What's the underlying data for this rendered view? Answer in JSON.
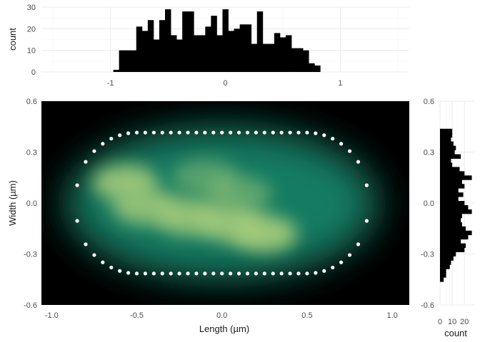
{
  "chart_data": [
    {
      "type": "bar",
      "role": "top-marginal-histogram",
      "xlabel": "",
      "ylabel": "count",
      "xlim": [
        -1.6,
        1.6
      ],
      "ylim": [
        0,
        30
      ],
      "x_ticks": [
        "-1",
        "0",
        "1"
      ],
      "y_ticks": [
        "0",
        "10",
        "20",
        "30"
      ],
      "bin_width": 0.05,
      "bins": [
        {
          "x": -0.95,
          "count": 1
        },
        {
          "x": -0.9,
          "count": 10
        },
        {
          "x": -0.85,
          "count": 10
        },
        {
          "x": -0.8,
          "count": 10
        },
        {
          "x": -0.75,
          "count": 21
        },
        {
          "x": -0.7,
          "count": 19
        },
        {
          "x": -0.65,
          "count": 24
        },
        {
          "x": -0.6,
          "count": 15
        },
        {
          "x": -0.55,
          "count": 24
        },
        {
          "x": -0.5,
          "count": 29
        },
        {
          "x": -0.45,
          "count": 17
        },
        {
          "x": -0.4,
          "count": 15
        },
        {
          "x": -0.35,
          "count": 28
        },
        {
          "x": -0.3,
          "count": 28
        },
        {
          "x": -0.25,
          "count": 17
        },
        {
          "x": -0.2,
          "count": 17
        },
        {
          "x": -0.15,
          "count": 21
        },
        {
          "x": -0.1,
          "count": 26
        },
        {
          "x": -0.05,
          "count": 17
        },
        {
          "x": 0.0,
          "count": 29
        },
        {
          "x": 0.05,
          "count": 19
        },
        {
          "x": 0.1,
          "count": 20
        },
        {
          "x": 0.15,
          "count": 22
        },
        {
          "x": 0.2,
          "count": 22
        },
        {
          "x": 0.25,
          "count": 13
        },
        {
          "x": 0.3,
          "count": 28
        },
        {
          "x": 0.35,
          "count": 13
        },
        {
          "x": 0.4,
          "count": 13
        },
        {
          "x": 0.45,
          "count": 18
        },
        {
          "x": 0.5,
          "count": 16
        },
        {
          "x": 0.55,
          "count": 17
        },
        {
          "x": 0.6,
          "count": 11
        },
        {
          "x": 0.65,
          "count": 11
        },
        {
          "x": 0.7,
          "count": 10
        },
        {
          "x": 0.75,
          "count": 4
        },
        {
          "x": 0.8,
          "count": 3
        }
      ]
    },
    {
      "type": "heatmap",
      "role": "main-density-with-outline",
      "xlabel": "Length (µm)",
      "ylabel": "Width (µm)",
      "xlim": [
        -1.06,
        1.1
      ],
      "ylim": [
        -0.6,
        0.6
      ],
      "x_ticks": [
        "-1.0",
        "-0.5",
        "0.0",
        "0.5",
        "1.0"
      ],
      "y_ticks": [
        "-0.6",
        "-0.3",
        "0.0",
        "0.3",
        "0.6"
      ],
      "colors": {
        "low": "#000000",
        "mid": "#14876b",
        "high": "#a9ce7c"
      },
      "density_hotspots": [
        {
          "x": -0.57,
          "y": 0.12,
          "intensity": 0.85
        },
        {
          "x": -0.45,
          "y": -0.02,
          "intensity": 0.8
        },
        {
          "x": -0.2,
          "y": -0.08,
          "intensity": 0.85
        },
        {
          "x": 0.05,
          "y": -0.12,
          "intensity": 0.85
        },
        {
          "x": 0.25,
          "y": -0.18,
          "intensity": 0.9
        },
        {
          "x": -0.1,
          "y": 0.15,
          "intensity": 0.45
        },
        {
          "x": 0.1,
          "y": 0.05,
          "intensity": 0.5
        }
      ],
      "outline_points": {
        "x": [
          -0.85,
          -0.8,
          -0.75,
          -0.7,
          -0.65,
          -0.6,
          -0.55,
          -0.5,
          -0.45,
          -0.4,
          -0.35,
          -0.3,
          -0.25,
          -0.2,
          -0.15,
          -0.1,
          -0.05,
          0.0,
          0.05,
          0.1,
          0.15,
          0.2,
          0.25,
          0.3,
          0.35,
          0.4,
          0.45,
          0.5,
          0.55,
          0.6,
          0.65,
          0.7,
          0.75,
          0.8,
          0.85
        ],
        "half_width": 0.415,
        "mid_half_width": 0.105
      }
    },
    {
      "type": "bar",
      "orientation": "horizontal",
      "role": "right-marginal-histogram",
      "xlabel": "count",
      "ylabel": "",
      "xlim": [
        0,
        28
      ],
      "ylim": [
        -0.6,
        0.6
      ],
      "x_ticks": [
        "0",
        "10",
        "20"
      ],
      "y_ticks": [
        "-0.6",
        "-0.3",
        "0.0",
        "0.3",
        "0.6"
      ],
      "bin_width": 0.025,
      "bins": [
        {
          "y": 0.425,
          "count": 10
        },
        {
          "y": 0.4,
          "count": 10
        },
        {
          "y": 0.375,
          "count": 9
        },
        {
          "y": 0.35,
          "count": 11
        },
        {
          "y": 0.325,
          "count": 13
        },
        {
          "y": 0.3,
          "count": 12
        },
        {
          "y": 0.275,
          "count": 17
        },
        {
          "y": 0.25,
          "count": 9
        },
        {
          "y": 0.225,
          "count": 10
        },
        {
          "y": 0.2,
          "count": 16
        },
        {
          "y": 0.175,
          "count": 20
        },
        {
          "y": 0.15,
          "count": 26
        },
        {
          "y": 0.125,
          "count": 18
        },
        {
          "y": 0.1,
          "count": 20
        },
        {
          "y": 0.075,
          "count": 15
        },
        {
          "y": 0.05,
          "count": 19
        },
        {
          "y": 0.025,
          "count": 15
        },
        {
          "y": 0.0,
          "count": 20
        },
        {
          "y": -0.025,
          "count": 23
        },
        {
          "y": -0.05,
          "count": 26
        },
        {
          "y": -0.075,
          "count": 18
        },
        {
          "y": -0.1,
          "count": 17
        },
        {
          "y": -0.125,
          "count": 18
        },
        {
          "y": -0.15,
          "count": 21
        },
        {
          "y": -0.175,
          "count": 26
        },
        {
          "y": -0.2,
          "count": 23
        },
        {
          "y": -0.225,
          "count": 17
        },
        {
          "y": -0.25,
          "count": 21
        },
        {
          "y": -0.275,
          "count": 20
        },
        {
          "y": -0.3,
          "count": 13
        },
        {
          "y": -0.325,
          "count": 11
        },
        {
          "y": -0.35,
          "count": 9
        },
        {
          "y": -0.375,
          "count": 8
        },
        {
          "y": -0.4,
          "count": 5
        },
        {
          "y": -0.425,
          "count": 5
        },
        {
          "y": -0.45,
          "count": 3
        }
      ]
    }
  ]
}
